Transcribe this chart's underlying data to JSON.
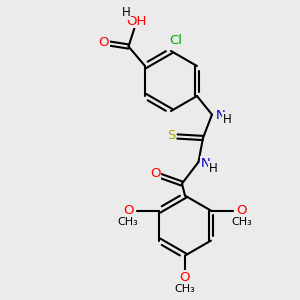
{
  "background_color": "#ebebeb",
  "bond_color": "#000000",
  "bond_width": 1.5,
  "atom_colors": {
    "O": "#ff0000",
    "N": "#0000cc",
    "S": "#aaaa00",
    "Cl": "#00aa00",
    "H": "#000000"
  },
  "font_size": 8.5,
  "fig_size": [
    3.0,
    3.0
  ],
  "dpi": 100,
  "xlim": [
    0,
    10
  ],
  "ylim": [
    0,
    10
  ]
}
